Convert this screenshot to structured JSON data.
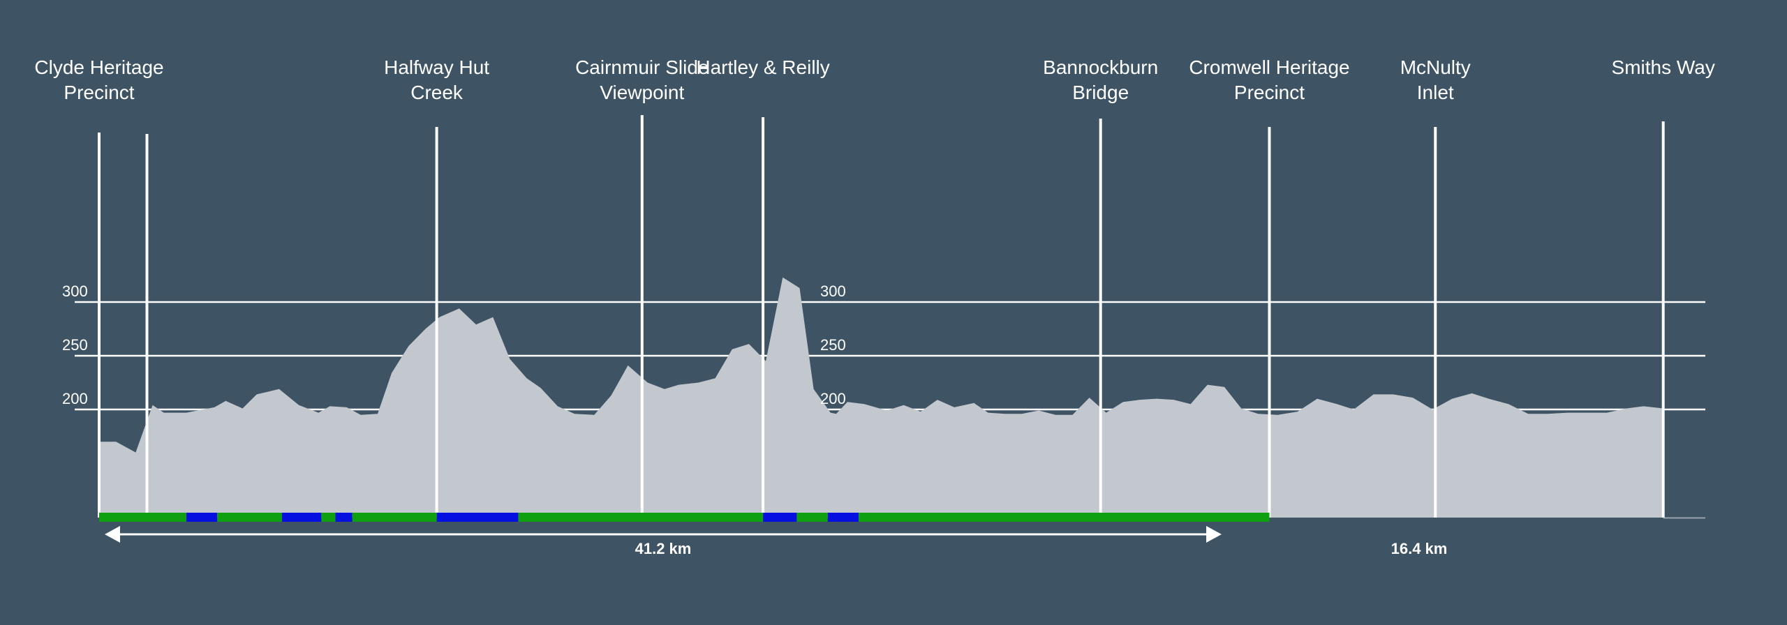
{
  "chart_data": {
    "type": "area",
    "title": "",
    "xlabel": "",
    "ylabel": "",
    "x_unit": "km",
    "xlim": [
      0,
      57.6
    ],
    "ylim": [
      150,
      320
    ],
    "yticks": [
      200,
      250,
      300
    ],
    "grid": true,
    "colors": {
      "background": "#3e5363",
      "terrain": "#c3c8ce",
      "grid": "#ffffff",
      "surface_green": "#0fa012",
      "surface_blue": "#0510e0"
    },
    "elevation": {
      "x": [
        0,
        0.6,
        1.3,
        1.9,
        2.3,
        3.1,
        4.1,
        4.5,
        5.1,
        5.6,
        6.4,
        7.1,
        7.8,
        8.2,
        8.8,
        9.3,
        9.9,
        10.4,
        11.0,
        11.6,
        12.1,
        12.8,
        13.4,
        14.0,
        14.6,
        15.2,
        15.7,
        16.3,
        16.9,
        17.6,
        18.2,
        18.8,
        19.5,
        20.1,
        20.6,
        21.3,
        21.9,
        22.5,
        23.1,
        23.7,
        24.3,
        24.9,
        25.4,
        26.0,
        26.2,
        26.6,
        27.2,
        28.0,
        28.6,
        29.2,
        29.8,
        30.4,
        31.1,
        31.6,
        32.2,
        32.8,
        33.4,
        34.0,
        34.6,
        35.2,
        35.8,
        36.4,
        37.0,
        37.6,
        38.2,
        38.8,
        39.4,
        40.0,
        40.6,
        41.2,
        41.9,
        42.6,
        43.3,
        44.0,
        44.6,
        45.3,
        46.0,
        46.7,
        47.4,
        48.1,
        48.8,
        49.4,
        50.1,
        50.8,
        51.5,
        52.2,
        52.9,
        53.6,
        54.3,
        54.9,
        55.6
      ],
      "y": [
        170,
        170,
        160,
        204,
        197,
        197,
        202,
        208,
        201,
        214,
        219,
        204,
        197,
        203,
        202,
        195,
        196,
        234,
        259,
        275,
        286,
        294,
        279,
        286,
        247,
        229,
        220,
        203,
        196,
        195,
        213,
        241,
        225,
        219,
        223,
        225,
        229,
        256,
        261,
        245,
        323,
        313,
        219,
        197,
        196,
        207,
        205,
        199,
        204,
        198,
        209,
        202,
        206,
        197,
        196,
        196,
        199,
        195,
        195,
        211,
        197,
        207,
        209,
        210,
        209,
        205,
        223,
        221,
        201,
        196,
        195,
        198,
        210,
        205,
        200,
        214,
        214,
        211,
        200,
        210,
        215,
        210,
        205,
        196,
        196,
        197,
        197,
        197,
        201,
        203,
        201
      ]
    },
    "pois": [
      {
        "name": "Clyde Heritage Precinct",
        "lines": [
          "Clyde Heritage",
          "Precinct"
        ],
        "x": 1.7
      },
      {
        "name": "Halfway Hut Creek",
        "lines": [
          "Halfway Hut",
          "Creek"
        ],
        "x": 12.0
      },
      {
        "name": "Cairnmuir Slide Viewpoint",
        "lines": [
          "Cairnmuir Slide",
          "Viewpoint"
        ],
        "x": 19.3
      },
      {
        "name": "Hartley & Reilly",
        "lines": [
          "Hartley & Reilly"
        ],
        "x": 23.6
      },
      {
        "name": "Bannockburn Bridge",
        "lines": [
          "Bannockburn",
          "Bridge"
        ],
        "x": 35.6
      },
      {
        "name": "Cromwell Heritage Precinct",
        "lines": [
          "Cromwell Heritage",
          "Precinct"
        ],
        "x": 41.6
      },
      {
        "name": "McNulty Inlet",
        "lines": [
          "McNulty",
          "Inlet"
        ],
        "x": 47.5
      },
      {
        "name": "Smiths Way",
        "lines": [
          "Smiths Way"
        ],
        "x": 55.6
      }
    ],
    "surface_segments": [
      {
        "from": 0,
        "to": 3.1,
        "type": "green"
      },
      {
        "from": 3.1,
        "to": 4.2,
        "type": "blue"
      },
      {
        "from": 4.2,
        "to": 6.5,
        "type": "green"
      },
      {
        "from": 6.5,
        "to": 7.9,
        "type": "blue"
      },
      {
        "from": 7.9,
        "to": 8.4,
        "type": "green"
      },
      {
        "from": 8.4,
        "to": 9.0,
        "type": "blue"
      },
      {
        "from": 9.0,
        "to": 12.0,
        "type": "green"
      },
      {
        "from": 12.0,
        "to": 14.9,
        "type": "blue"
      },
      {
        "from": 14.9,
        "to": 23.6,
        "type": "green"
      },
      {
        "from": 23.6,
        "to": 24.8,
        "type": "blue"
      },
      {
        "from": 24.8,
        "to": 25.9,
        "type": "green"
      },
      {
        "from": 25.9,
        "to": 27.0,
        "type": "blue"
      },
      {
        "from": 27.0,
        "to": 41.6,
        "type": "green"
      }
    ],
    "distances": [
      {
        "label": "41.2 km",
        "from": 0,
        "to": 41.2,
        "arrow": true
      },
      {
        "label": "16.4 km",
        "from": 41.2,
        "to": 57.6,
        "arrow": false
      }
    ]
  }
}
